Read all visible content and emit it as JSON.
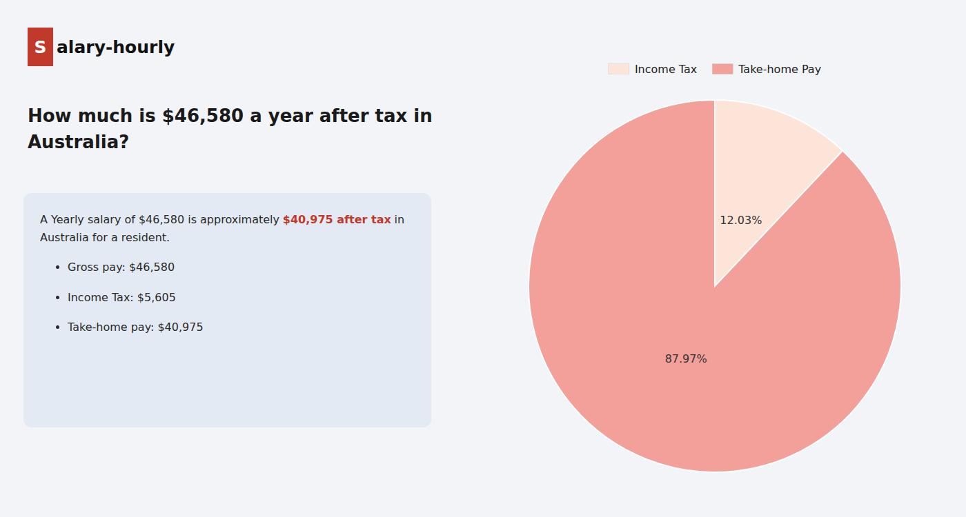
{
  "chart_data": {
    "type": "pie",
    "title": "How much is $46,580 a year after tax in Australia?",
    "categories": [
      "Income Tax",
      "Take-home Pay"
    ],
    "values": [
      12.03,
      87.97
    ],
    "value_labels": [
      "12.03%",
      "87.97%"
    ],
    "colors": [
      "#fde4d8",
      "#f4a09a"
    ],
    "data_labels": true,
    "legend": "top",
    "annotations": [
      "S",
      "alary-hourly",
      "A Yearly salary of $46,580 is approximately",
      "$40,975 after tax",
      "in",
      "Australia for a resident.",
      "Gross pay: $46,580",
      "Income Tax: $5,605",
      "Take-home pay: $40,975"
    ]
  }
}
